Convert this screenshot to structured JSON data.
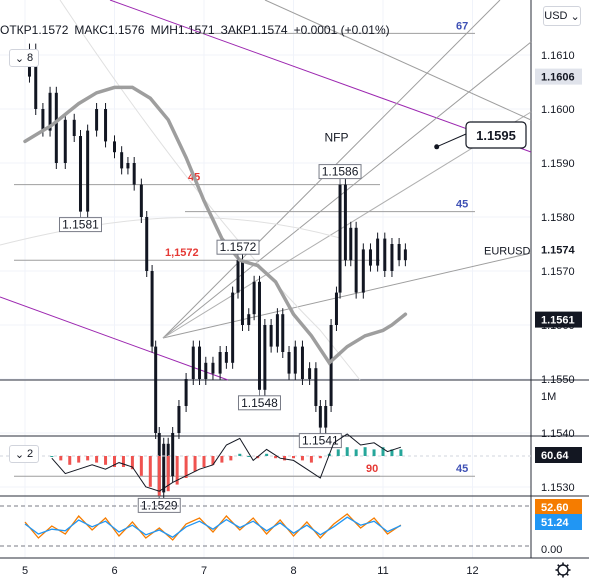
{
  "header": {
    "open_label": "ОТКР",
    "open_value": "1.1572",
    "high_label": "МАКС",
    "high_value": "1.1576",
    "low_label": "МИН",
    "low_value": "1.1571",
    "close_label": "ЗАКР",
    "close_value": "1.1574",
    "change": "+0.0001 (+0.01%)",
    "collapse_count": "8",
    "indicator_count": "2",
    "currency": "USD"
  },
  "colors": {
    "bull": "#26a69a",
    "bear": "#ef5350",
    "ma": "#9e9e9e",
    "channel": "#9c27b0",
    "fib_left": "#e53935",
    "fib_right": "#3f51b5",
    "rsi_orange": "#f57c00",
    "rsi_blue": "#2196f3"
  },
  "chart_data": [
    {
      "type": "line",
      "name": "price",
      "symbol": "EURUSD",
      "y_axis_ticks": [
        "1.1610",
        "1.1600",
        "1.1590",
        "1.1580",
        "1.1570",
        "1.1560",
        "1.1550",
        "1.1540",
        "1.1530"
      ],
      "ylim": [
        1.1519,
        1.1631
      ],
      "x_ticks": [
        {
          "label": "5",
          "day": 0
        },
        {
          "label": "6",
          "day": 1
        },
        {
          "label": "7",
          "day": 2
        },
        {
          "label": "8",
          "day": 3
        },
        {
          "label": "11",
          "day": 4
        },
        {
          "label": "12",
          "day": 5
        }
      ],
      "price_points": [
        [
          0.0,
          1.1606
        ],
        [
          0.05,
          1.1611
        ],
        [
          0.12,
          1.16
        ],
        [
          0.2,
          1.1596
        ],
        [
          0.28,
          1.1603
        ],
        [
          0.35,
          1.159
        ],
        [
          0.45,
          1.1598
        ],
        [
          0.55,
          1.1595
        ],
        [
          0.62,
          1.1581
        ],
        [
          0.7,
          1.1596
        ],
        [
          0.8,
          1.16
        ],
        [
          0.9,
          1.1594
        ],
        [
          1.0,
          1.1592
        ],
        [
          1.08,
          1.1589
        ],
        [
          1.15,
          1.159
        ],
        [
          1.22,
          1.1586
        ],
        [
          1.3,
          1.158
        ],
        [
          1.36,
          1.157
        ],
        [
          1.42,
          1.1556
        ],
        [
          1.46,
          1.154
        ],
        [
          1.5,
          1.1529
        ],
        [
          1.55,
          1.1538
        ],
        [
          1.6,
          1.1532
        ],
        [
          1.65,
          1.154
        ],
        [
          1.72,
          1.1545
        ],
        [
          1.8,
          1.155
        ],
        [
          1.88,
          1.1556
        ],
        [
          1.95,
          1.155
        ],
        [
          2.02,
          1.1553
        ],
        [
          2.1,
          1.1551
        ],
        [
          2.18,
          1.1555
        ],
        [
          2.25,
          1.1553
        ],
        [
          2.32,
          1.1566
        ],
        [
          2.38,
          1.1572
        ],
        [
          2.43,
          1.156
        ],
        [
          2.5,
          1.1562
        ],
        [
          2.56,
          1.1568
        ],
        [
          2.62,
          1.1548
        ],
        [
          2.68,
          1.156
        ],
        [
          2.75,
          1.1556
        ],
        [
          2.82,
          1.1562
        ],
        [
          2.88,
          1.1555
        ],
        [
          2.95,
          1.1551
        ],
        [
          3.02,
          1.1556
        ],
        [
          3.1,
          1.155
        ],
        [
          3.18,
          1.1552
        ],
        [
          3.25,
          1.1545
        ],
        [
          3.3,
          1.1541
        ],
        [
          3.36,
          1.1545
        ],
        [
          3.42,
          1.156
        ],
        [
          3.48,
          1.1566
        ],
        [
          3.52,
          1.1586
        ],
        [
          3.58,
          1.1572
        ],
        [
          3.64,
          1.1578
        ],
        [
          3.7,
          1.1566
        ],
        [
          3.78,
          1.1574
        ],
        [
          3.86,
          1.1571
        ],
        [
          3.94,
          1.1576
        ],
        [
          4.02,
          1.157
        ],
        [
          4.1,
          1.1575
        ],
        [
          4.18,
          1.1572
        ],
        [
          4.25,
          1.1574
        ]
      ],
      "moving_average": [
        [
          0.0,
          1.1594
        ],
        [
          0.3,
          1.1597
        ],
        [
          0.6,
          1.1601
        ],
        [
          0.8,
          1.1603
        ],
        [
          1.0,
          1.1604
        ],
        [
          1.2,
          1.1604
        ],
        [
          1.4,
          1.1602
        ],
        [
          1.6,
          1.1598
        ],
        [
          1.8,
          1.1591
        ],
        [
          2.0,
          1.1583
        ],
        [
          2.2,
          1.1576
        ],
        [
          2.4,
          1.1572
        ],
        [
          2.6,
          1.1571
        ],
        [
          2.8,
          1.1568
        ],
        [
          3.0,
          1.1562
        ],
        [
          3.2,
          1.1558
        ],
        [
          3.4,
          1.1553
        ],
        [
          3.6,
          1.1556
        ],
        [
          3.8,
          1.1558
        ],
        [
          4.0,
          1.1559
        ],
        [
          4.1,
          1.156
        ],
        [
          4.25,
          1.1562
        ]
      ],
      "price_labels": [
        {
          "text": "1.1581",
          "day": 0.62,
          "price": 1.1581,
          "place": "below"
        },
        {
          "text": "1.1529",
          "day": 1.5,
          "price": 1.1529,
          "place": "below"
        },
        {
          "text": "1.1572",
          "day": 2.38,
          "price": 1.1572,
          "place": "above"
        },
        {
          "text": "1.1548",
          "day": 2.62,
          "price": 1.1548,
          "place": "below"
        },
        {
          "text": "1.1541",
          "day": 3.3,
          "price": 1.1541,
          "place": "below"
        },
        {
          "text": "1.1586",
          "day": 3.52,
          "price": 1.1586,
          "place": "above"
        }
      ],
      "annotations": [
        {
          "text": "NFP",
          "day": 3.48,
          "price": 1.1594
        }
      ],
      "callout": {
        "text": "1.1595",
        "price": 1.1595,
        "anchor_day": 4.6,
        "anchor_price": 1.1593
      },
      "fib_levels": [
        {
          "text": "45",
          "price": 1.1586,
          "side": "left"
        },
        {
          "text": "1,1572",
          "price": 1.1572,
          "side": "left"
        },
        {
          "text": "90",
          "price": 1.1532,
          "side": "left"
        },
        {
          "text": "67",
          "price": 1.1614,
          "side": "right"
        },
        {
          "text": "45",
          "price": 1.1581,
          "side": "right"
        },
        {
          "text": "45",
          "price": 1.1532,
          "side": "right"
        }
      ],
      "price_badges": [
        {
          "text": "1.1606",
          "price": 1.1606,
          "style": "light"
        },
        {
          "text": "1.1574",
          "price": 1.1574,
          "style": "plain"
        },
        {
          "text": "1.1561",
          "price": 1.1561,
          "style": "dark"
        }
      ],
      "volume_label": "1M"
    },
    {
      "type": "bar",
      "name": "oscillator",
      "value_label": "60.64",
      "histogram": [
        [
          0.3,
          0
        ],
        [
          0.4,
          -2
        ],
        [
          0.5,
          -4
        ],
        [
          0.6,
          -3
        ],
        [
          0.7,
          -2
        ],
        [
          0.8,
          -3
        ],
        [
          0.9,
          -4
        ],
        [
          1.0,
          -5
        ],
        [
          1.1,
          -5
        ],
        [
          1.2,
          -6
        ],
        [
          1.3,
          -9
        ],
        [
          1.4,
          -14
        ],
        [
          1.5,
          -18
        ],
        [
          1.6,
          -16
        ],
        [
          1.7,
          -13
        ],
        [
          1.8,
          -10
        ],
        [
          1.9,
          -7
        ],
        [
          2.0,
          -5
        ],
        [
          2.1,
          -4
        ],
        [
          2.2,
          -3
        ],
        [
          2.3,
          -2
        ],
        [
          2.4,
          1
        ],
        [
          2.5,
          0
        ],
        [
          2.6,
          -1
        ],
        [
          2.7,
          1
        ],
        [
          2.8,
          -1
        ],
        [
          2.9,
          -2
        ],
        [
          3.0,
          -1
        ],
        [
          3.1,
          -2
        ],
        [
          3.2,
          -3
        ],
        [
          3.3,
          -1
        ],
        [
          3.4,
          1
        ],
        [
          3.5,
          3
        ],
        [
          3.6,
          4
        ],
        [
          3.7,
          3
        ],
        [
          3.8,
          4
        ],
        [
          3.9,
          3
        ],
        [
          4.0,
          4
        ],
        [
          4.1,
          3
        ],
        [
          4.2,
          3
        ]
      ],
      "line": [
        [
          0.3,
          -1
        ],
        [
          0.45,
          -8
        ],
        [
          0.6,
          -6
        ],
        [
          0.75,
          -4
        ],
        [
          0.9,
          -6
        ],
        [
          1.05,
          -3
        ],
        [
          1.2,
          -5
        ],
        [
          1.35,
          -14
        ],
        [
          1.5,
          -16
        ],
        [
          1.65,
          -12
        ],
        [
          1.8,
          -9
        ],
        [
          1.95,
          -6
        ],
        [
          2.1,
          -4
        ],
        [
          2.25,
          5
        ],
        [
          2.4,
          8
        ],
        [
          2.55,
          -2
        ],
        [
          2.7,
          3
        ],
        [
          2.85,
          -1
        ],
        [
          3.0,
          -2
        ],
        [
          3.15,
          -6
        ],
        [
          3.3,
          -10
        ],
        [
          3.45,
          6
        ],
        [
          3.6,
          10
        ],
        [
          3.75,
          5
        ],
        [
          3.9,
          6
        ],
        [
          4.05,
          2
        ],
        [
          4.2,
          4
        ]
      ]
    },
    {
      "type": "line",
      "name": "stochastic",
      "value_labels": [
        "52.60",
        "51.24"
      ],
      "axis_label": "0.00",
      "series": [
        {
          "values": [
            [
              0,
              60
            ],
            [
              0.15,
              20
            ],
            [
              0.3,
              50
            ],
            [
              0.45,
              30
            ],
            [
              0.6,
              75
            ],
            [
              0.75,
              40
            ],
            [
              0.9,
              70
            ],
            [
              1.05,
              25
            ],
            [
              1.2,
              60
            ],
            [
              1.35,
              20
            ],
            [
              1.5,
              45
            ],
            [
              1.65,
              15
            ],
            [
              1.8,
              55
            ],
            [
              1.95,
              70
            ],
            [
              2.1,
              35
            ],
            [
              2.25,
              75
            ],
            [
              2.4,
              40
            ],
            [
              2.55,
              70
            ],
            [
              2.7,
              30
            ],
            [
              2.85,
              65
            ],
            [
              3.0,
              25
            ],
            [
              3.15,
              60
            ],
            [
              3.3,
              20
            ],
            [
              3.45,
              55
            ],
            [
              3.6,
              80
            ],
            [
              3.75,
              45
            ],
            [
              3.9,
              70
            ],
            [
              4.05,
              30
            ],
            [
              4.2,
              52.6
            ]
          ]
        },
        {
          "values": [
            [
              0,
              55
            ],
            [
              0.15,
              30
            ],
            [
              0.3,
              42
            ],
            [
              0.45,
              38
            ],
            [
              0.6,
              65
            ],
            [
              0.75,
              48
            ],
            [
              0.9,
              62
            ],
            [
              1.05,
              35
            ],
            [
              1.2,
              52
            ],
            [
              1.35,
              28
            ],
            [
              1.5,
              40
            ],
            [
              1.65,
              22
            ],
            [
              1.8,
              48
            ],
            [
              1.95,
              62
            ],
            [
              2.1,
              42
            ],
            [
              2.25,
              66
            ],
            [
              2.4,
              46
            ],
            [
              2.55,
              62
            ],
            [
              2.7,
              38
            ],
            [
              2.85,
              58
            ],
            [
              3.0,
              32
            ],
            [
              3.15,
              52
            ],
            [
              3.3,
              28
            ],
            [
              3.45,
              48
            ],
            [
              3.6,
              72
            ],
            [
              3.75,
              52
            ],
            [
              3.9,
              62
            ],
            [
              4.05,
              36
            ],
            [
              4.2,
              51.24
            ]
          ]
        }
      ]
    }
  ]
}
